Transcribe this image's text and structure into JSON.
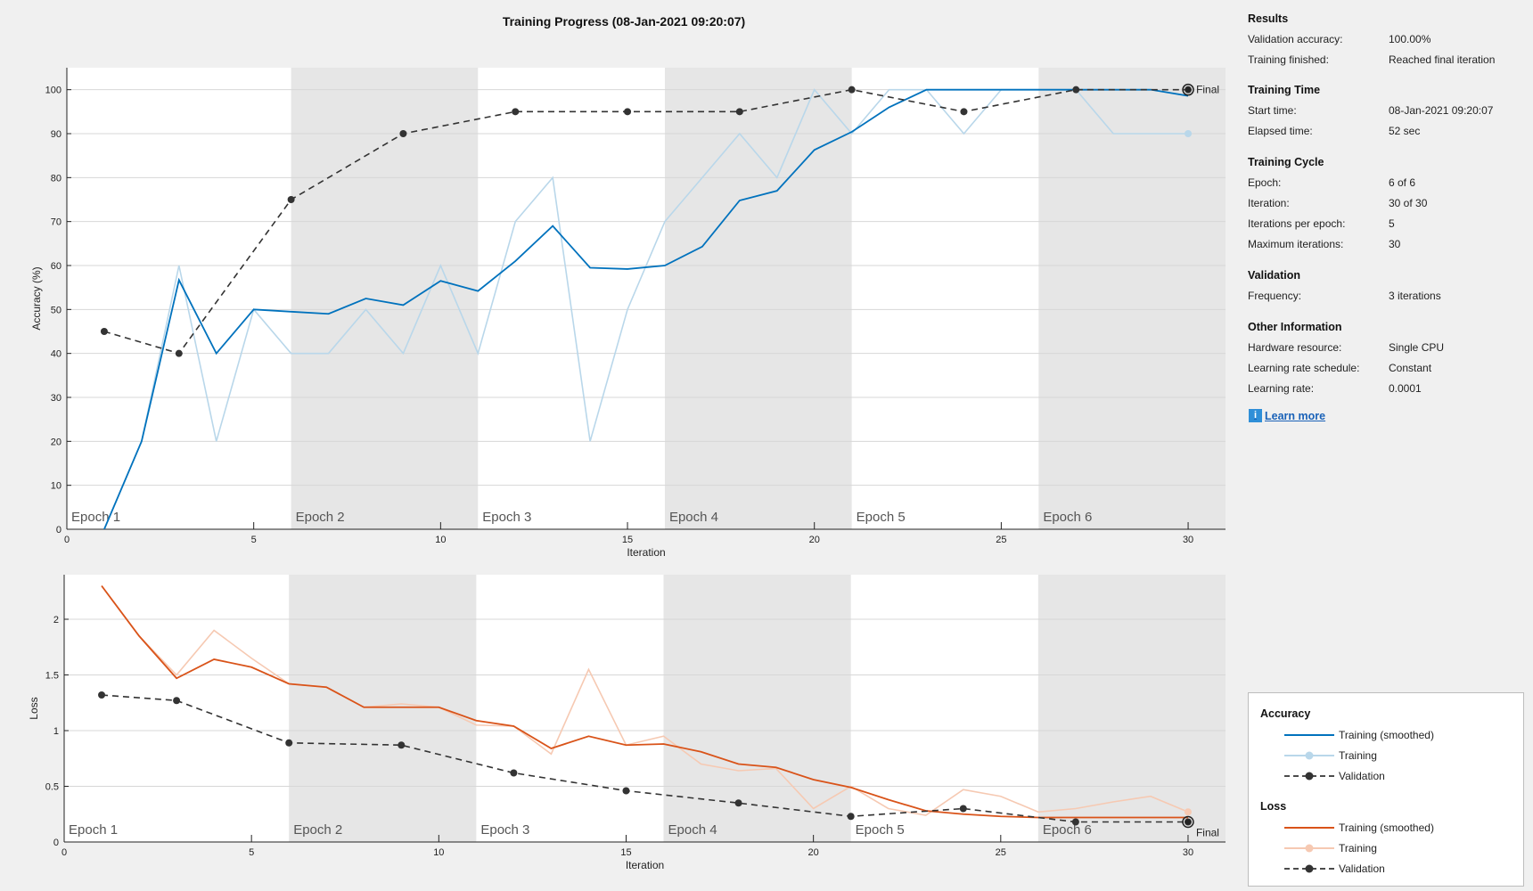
{
  "window": {
    "title": "Training Progress (08-Jan-2021 09:20:07)"
  },
  "colors": {
    "accuracy_smoothed": "#0072bd",
    "accuracy_raw": "#b9d7ea",
    "loss_smoothed": "#d95319",
    "loss_raw": "#f6c9b2",
    "validation": "#333333",
    "epoch_band": "#e6e6e6"
  },
  "epochs": [
    "Epoch 1",
    "Epoch 2",
    "Epoch 3",
    "Epoch 4",
    "Epoch 5",
    "Epoch 6"
  ],
  "final_label": "Final",
  "info": {
    "sections": [
      {
        "title": "Results",
        "rows": [
          {
            "label": "Validation accuracy:",
            "value": "100.00%"
          },
          {
            "label": "Training finished:",
            "value": "Reached final iteration"
          }
        ]
      },
      {
        "title": "Training Time",
        "rows": [
          {
            "label": "Start time:",
            "value": "08-Jan-2021 09:20:07"
          },
          {
            "label": "Elapsed time:",
            "value": "52 sec"
          }
        ]
      },
      {
        "title": "Training Cycle",
        "rows": [
          {
            "label": "Epoch:",
            "value": "6 of 6"
          },
          {
            "label": "Iteration:",
            "value": "30 of 30"
          },
          {
            "label": "Iterations per epoch:",
            "value": "5"
          },
          {
            "label": "Maximum iterations:",
            "value": "30"
          }
        ]
      },
      {
        "title": "Validation",
        "rows": [
          {
            "label": "Frequency:",
            "value": "3 iterations"
          }
        ]
      },
      {
        "title": "Other Information",
        "rows": [
          {
            "label": "Hardware resource:",
            "value": "Single CPU"
          },
          {
            "label": "Learning rate schedule:",
            "value": "Constant"
          },
          {
            "label": "Learning rate:",
            "value": "0.0001"
          }
        ]
      }
    ],
    "learn_more": "Learn more"
  },
  "legend": {
    "accuracy_title": "Accuracy",
    "loss_title": "Loss",
    "items": {
      "smoothed": "Training (smoothed)",
      "training": "Training",
      "validation": "Validation"
    }
  },
  "chart_data": [
    {
      "type": "line",
      "title": "",
      "xlabel": "Iteration",
      "ylabel": "Accuracy (%)",
      "xlim": [
        0,
        31
      ],
      "ylim": [
        0,
        105
      ],
      "xticks": [
        0,
        5,
        10,
        15,
        20,
        25,
        30
      ],
      "yticks": [
        0,
        10,
        20,
        30,
        40,
        50,
        60,
        70,
        80,
        90,
        100
      ],
      "grid": true,
      "series": [
        {
          "name": "Training (smoothed)",
          "x": [
            1,
            2,
            3,
            4,
            5,
            6,
            7,
            8,
            9,
            10,
            11,
            12,
            13,
            14,
            15,
            16,
            17,
            18,
            19,
            20,
            21,
            22,
            23,
            24,
            25,
            26,
            27,
            28,
            29,
            30
          ],
          "y": [
            0,
            20,
            56.7,
            40,
            50,
            49.5,
            49,
            52.5,
            51,
            56.5,
            54.2,
            61,
            69,
            59.5,
            59.2,
            60,
            64.3,
            74.8,
            77,
            86.3,
            90.4,
            96,
            100,
            100,
            100,
            100,
            100,
            100,
            100,
            98.6
          ]
        },
        {
          "name": "Training",
          "x": [
            1,
            2,
            3,
            4,
            5,
            6,
            7,
            8,
            9,
            10,
            11,
            12,
            13,
            14,
            15,
            16,
            17,
            18,
            19,
            20,
            21,
            22,
            23,
            24,
            25,
            26,
            27,
            28,
            29,
            30
          ],
          "y": [
            0,
            20,
            60,
            20,
            50,
            40,
            40,
            50,
            40,
            60,
            40,
            70,
            80,
            20,
            50,
            70,
            80,
            90,
            80,
            100,
            90,
            100,
            100,
            90,
            100,
            100,
            100,
            90,
            90,
            90
          ]
        },
        {
          "name": "Validation",
          "x": [
            1,
            3,
            6,
            9,
            12,
            15,
            18,
            21,
            24,
            27,
            30
          ],
          "y": [
            45,
            40,
            75,
            90,
            95,
            95,
            95,
            100,
            95,
            100,
            100
          ]
        }
      ]
    },
    {
      "type": "line",
      "title": "",
      "xlabel": "Iteration",
      "ylabel": "Loss",
      "xlim": [
        0,
        31
      ],
      "ylim": [
        0,
        2.4
      ],
      "xticks": [
        0,
        5,
        10,
        15,
        20,
        25,
        30
      ],
      "yticks": [
        0,
        0.5,
        1,
        1.5,
        2
      ],
      "grid": true,
      "series": [
        {
          "name": "Training (smoothed)",
          "x": [
            1,
            2,
            3,
            4,
            5,
            6,
            7,
            8,
            9,
            10,
            11,
            12,
            13,
            14,
            15,
            16,
            17,
            18,
            19,
            20,
            21,
            22,
            23,
            24,
            25,
            26,
            27,
            28,
            29,
            30
          ],
          "y": [
            2.3,
            1.85,
            1.47,
            1.64,
            1.57,
            1.42,
            1.39,
            1.21,
            1.21,
            1.21,
            1.09,
            1.04,
            0.84,
            0.95,
            0.87,
            0.88,
            0.81,
            0.7,
            0.67,
            0.56,
            0.49,
            0.38,
            0.28,
            0.25,
            0.23,
            0.22,
            0.22,
            0.22,
            0.22,
            0.22
          ]
        },
        {
          "name": "Training",
          "x": [
            1,
            2,
            3,
            4,
            5,
            6,
            7,
            8,
            9,
            10,
            11,
            12,
            13,
            14,
            15,
            16,
            17,
            18,
            19,
            20,
            21,
            22,
            23,
            24,
            25,
            26,
            27,
            28,
            29,
            30
          ],
          "y": [
            2.3,
            1.85,
            1.5,
            1.9,
            1.65,
            1.42,
            1.39,
            1.21,
            1.24,
            1.21,
            1.05,
            1.04,
            0.79,
            1.55,
            0.87,
            0.95,
            0.7,
            0.64,
            0.66,
            0.3,
            0.5,
            0.3,
            0.24,
            0.47,
            0.41,
            0.27,
            0.3,
            0.36,
            0.41,
            0.27
          ]
        },
        {
          "name": "Validation",
          "x": [
            1,
            3,
            6,
            9,
            12,
            15,
            18,
            21,
            24,
            27,
            30
          ],
          "y": [
            1.32,
            1.27,
            0.89,
            0.87,
            0.62,
            0.46,
            0.35,
            0.23,
            0.3,
            0.18,
            0.18
          ]
        }
      ]
    }
  ]
}
